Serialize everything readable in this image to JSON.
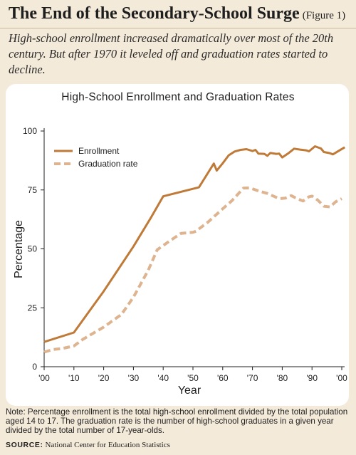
{
  "header": {
    "title": "The End of the Secondary-School Surge",
    "figure_label": "(Figure 1)",
    "subtitle": "High-school enrollment increased dramatically over most of the 20th century. But after 1970 it leveled off and graduation rates started to decline."
  },
  "footer": {
    "note": "Note: Percentage enrollment is the total high-school enrollment divided by the total population aged 14 to 17. The graduation rate is the number of high-school graduates in a given year divided by the total number of 17-year-olds.",
    "source_label": "SOURCE:",
    "source_text": "National Center for Education Statistics"
  },
  "colors": {
    "enrollment": "#c07a38",
    "graduation": "#ddb48f",
    "axis": "#222222"
  },
  "chart_data": {
    "type": "line",
    "title": "High-School Enrollment and Graduation Rates",
    "xlabel": "Year",
    "ylabel": "Percentage",
    "xlim": [
      1900,
      2000
    ],
    "ylim": [
      0,
      100
    ],
    "x_ticks": [
      1900,
      1910,
      1920,
      1930,
      1940,
      1950,
      1960,
      1970,
      1980,
      1990,
      2000
    ],
    "x_tick_labels": [
      "'00",
      "'10",
      "'20",
      "'30",
      "'40",
      "'50",
      "'60",
      "'70",
      "'80",
      "'90",
      "'00"
    ],
    "y_ticks": [
      0,
      25,
      50,
      75,
      100
    ],
    "y_tick_labels": [
      "0",
      "25",
      "50",
      "75",
      "100"
    ],
    "legend_position": "top-left",
    "grid": false,
    "series": [
      {
        "name": "Enrollment",
        "style": "solid",
        "points": [
          [
            1900,
            10.5
          ],
          [
            1910,
            14.5
          ],
          [
            1920,
            32
          ],
          [
            1930,
            51
          ],
          [
            1936,
            63.5
          ],
          [
            1940,
            72.3
          ],
          [
            1952,
            76.1
          ],
          [
            1957,
            86.2
          ],
          [
            1958,
            83.2
          ],
          [
            1960,
            86.3
          ],
          [
            1962,
            89.7
          ],
          [
            1964,
            91.3
          ],
          [
            1966,
            92
          ],
          [
            1968,
            92.3
          ],
          [
            1970,
            91.5
          ],
          [
            1971,
            92
          ],
          [
            1972,
            90.4
          ],
          [
            1974,
            90.3
          ],
          [
            1975,
            89.5
          ],
          [
            1976,
            90.7
          ],
          [
            1978,
            90.3
          ],
          [
            1979,
            90.4
          ],
          [
            1980,
            88.8
          ],
          [
            1982,
            90.5
          ],
          [
            1984,
            92.5
          ],
          [
            1986,
            92.1
          ],
          [
            1988,
            91.8
          ],
          [
            1989,
            91.4
          ],
          [
            1991,
            93.5
          ],
          [
            1993,
            92.6
          ],
          [
            1994,
            91.1
          ],
          [
            1996,
            90.6
          ],
          [
            1997,
            90.1
          ],
          [
            1999,
            91.6
          ],
          [
            2001,
            93.1
          ]
        ]
      },
      {
        "name": "Graduation rate",
        "style": "dashed",
        "points": [
          [
            1900,
            6.2
          ],
          [
            1903,
            7.3
          ],
          [
            1906,
            7.7
          ],
          [
            1910,
            8.8
          ],
          [
            1913,
            11.6
          ],
          [
            1920,
            16.8
          ],
          [
            1926,
            22.2
          ],
          [
            1930,
            29.5
          ],
          [
            1935,
            41
          ],
          [
            1938,
            49.6
          ],
          [
            1942,
            53.2
          ],
          [
            1946,
            56.6
          ],
          [
            1950,
            57
          ],
          [
            1951,
            57.5
          ],
          [
            1955,
            61.3
          ],
          [
            1960,
            67
          ],
          [
            1963,
            70.3
          ],
          [
            1967,
            75.8
          ],
          [
            1969,
            75.9
          ],
          [
            1972,
            74.6
          ],
          [
            1975,
            73.5
          ],
          [
            1979,
            71.3
          ],
          [
            1981,
            71.5
          ],
          [
            1983,
            72.6
          ],
          [
            1985,
            71.3
          ],
          [
            1987,
            70.3
          ],
          [
            1989,
            72.1
          ],
          [
            1990,
            72.4
          ],
          [
            1992,
            70.6
          ],
          [
            1994,
            68.1
          ],
          [
            1996,
            67.8
          ],
          [
            1998,
            70
          ],
          [
            2000,
            71.3
          ]
        ]
      }
    ]
  }
}
